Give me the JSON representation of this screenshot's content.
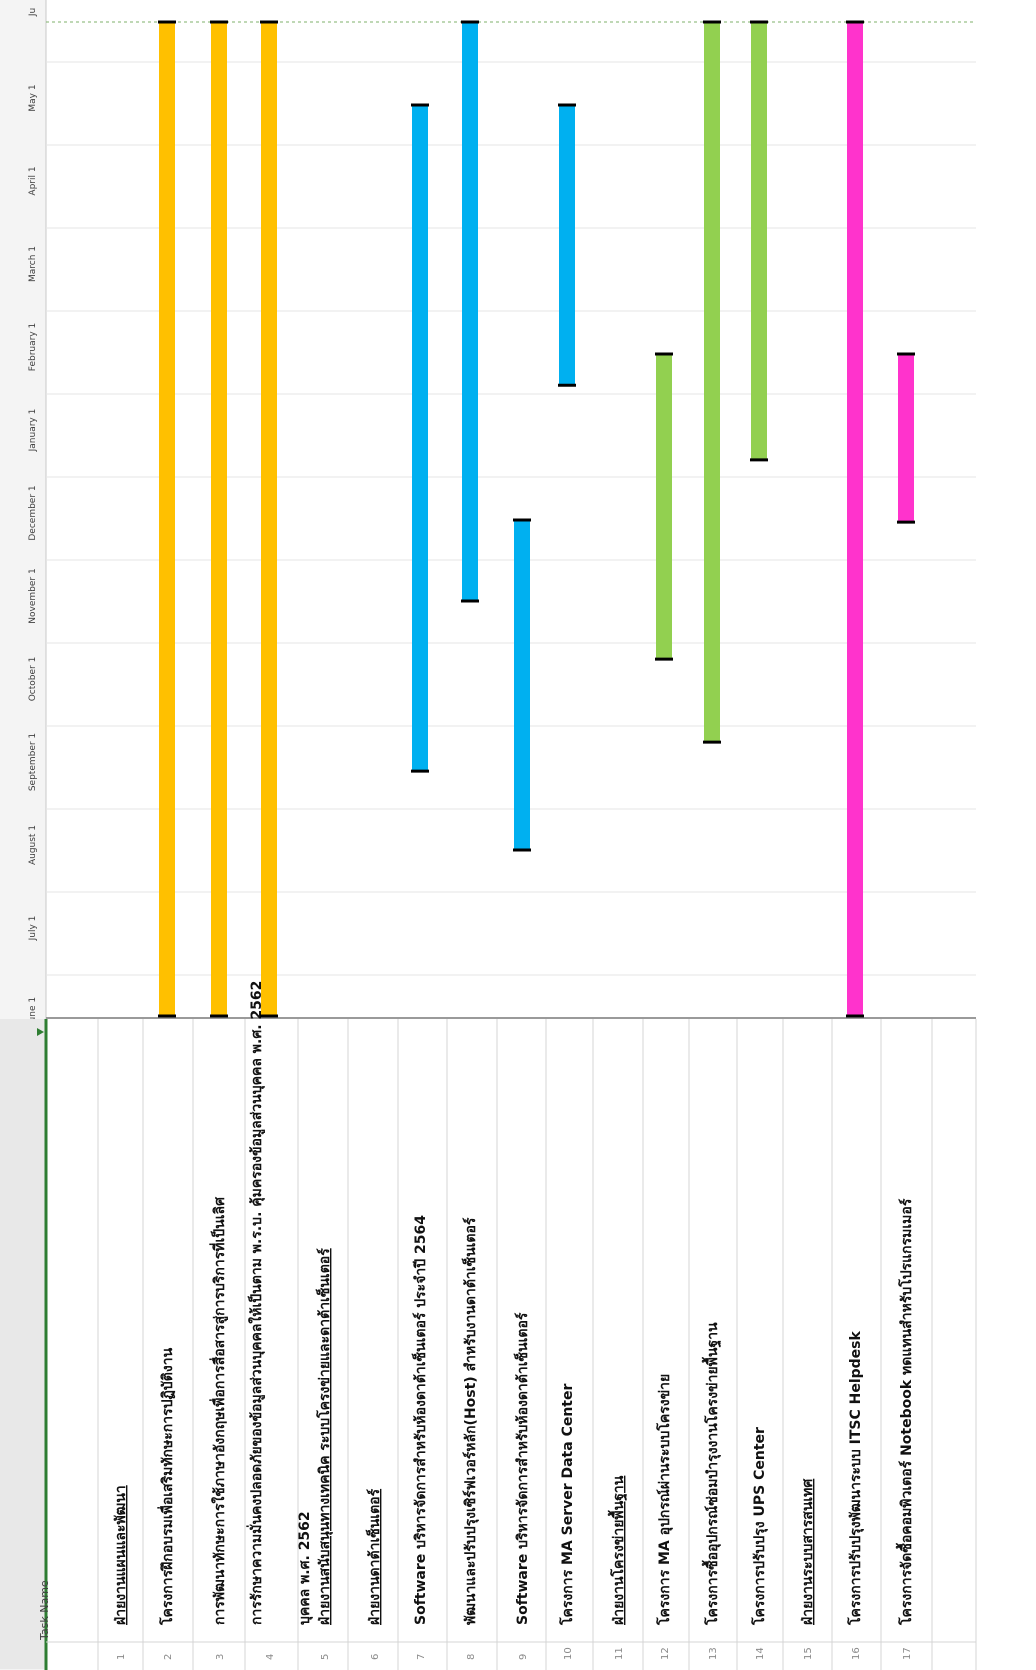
{
  "table": {
    "header_task_name": "Task Name",
    "header_dropdown_icon": "triangle-down-icon"
  },
  "timeline": {
    "months": [
      "June 1",
      "July 1",
      "August 1",
      "September 1",
      "October 1",
      "November 1",
      "December 1",
      "January 1",
      "February 1",
      "March 1",
      "April 1",
      "May 1",
      "Ju"
    ],
    "today_line_color": "#7fb26b"
  },
  "chart_data": {
    "type": "gantt",
    "orientation": "rotated-90-ccw",
    "time_axis": {
      "labels": [
        "June 1",
        "July 1",
        "August 1",
        "September 1",
        "October 1",
        "November 1",
        "December 1",
        "January 1",
        "February 1",
        "March 1",
        "April 1",
        "May 1",
        "Ju"
      ],
      "range": [
        "June 1",
        "June 15 (following year)"
      ]
    },
    "tasks": [
      {
        "row": "1",
        "name": "ฝ่ายงานแผนและพัฒนา",
        "section": true
      },
      {
        "row": "2",
        "name": "โครงการฝึกอบรมเพื่อเสริมทักษะการปฏิบัติงาน",
        "start_month": 0.0,
        "end_month": 12.0,
        "color": "#ffc000"
      },
      {
        "row": "3",
        "name": "การพัฒนาทักษะการใช้ภาษาอังกฤษเพื่อการสื่อสารสู่การบริการที่เป็นเลิศ",
        "start_month": 0.0,
        "end_month": 12.0,
        "color": "#ffc000"
      },
      {
        "row": "4",
        "name": "การรักษาความมั่นคงปลอดภัยของข้อมูลส่วนบุคคลให้เป็นตาม พ.ร.บ. คุ้มครองข้อมูลส่วนบุคคล พ.ศ. 2562",
        "start_month": 0.0,
        "end_month": 12.0,
        "color": "#ffc000"
      },
      {
        "row": "5",
        "name": "ฝ่ายงานสนับสนุนทางเทคนิค ระบบโครงข่ายและดาต้าเซ็นเตอร์",
        "section": true
      },
      {
        "row": "6",
        "name": "ฝ่ายงานดาต้าเซ็นเตอร์",
        "section": true
      },
      {
        "row": "7",
        "name": "Software บริหารจัดการสำหรับห้องดาต้าเซ็นเตอร์ ประจำปี 2564",
        "start_month": 2.95,
        "end_month": 11.0,
        "color": "#00b0f0"
      },
      {
        "row": "8",
        "name": "พัฒนาและปรับปรุงเซิร์ฟเวอร์หลัก(Host) สำหรับงานดาต้าเซ็นเตอร์",
        "start_month": 5.0,
        "end_month": 12.0,
        "color": "#00b0f0"
      },
      {
        "row": "9",
        "name": "Software บริหารจัดการสำหรับห้องดาต้าเซ็นเตอร์",
        "start_month": 2.0,
        "end_month": 6.0,
        "color": "#00b0f0"
      },
      {
        "row": "10",
        "name": "โครงการ MA Server Data Center",
        "start_month": 7.6,
        "end_month": 11.0,
        "color": "#00b0f0"
      },
      {
        "row": "11",
        "name": "ฝ่ายงานโครงข่ายพื้นฐาน",
        "section": true
      },
      {
        "row": "12",
        "name": "โครงการ MA อุปกรณ์ผ่านระบบโครงข่าย",
        "start_month": 4.3,
        "end_month": 8.0,
        "color": "#92d050"
      },
      {
        "row": "13",
        "name": "โครงการซื้ออุปกรณ์ซ่อมบำรุงงานโครงข่ายพื้นฐาน",
        "start_month": 3.3,
        "end_month": 12.0,
        "color": "#92d050"
      },
      {
        "row": "14",
        "name": "โครงการปรับปรุง UPS Center",
        "start_month": 6.7,
        "end_month": 12.0,
        "color": "#92d050"
      },
      {
        "row": "15",
        "name": "ฝ่ายงานระบบสารสนเทศ",
        "section": true
      },
      {
        "row": "16",
        "name": "โครงการปรับปรุงพัฒนาระบบ ITSC Helpdesk",
        "start_month": 0.0,
        "end_month": 12.0,
        "color": "#ff33cc"
      },
      {
        "row": "17",
        "name": "โครงการจัดซื้อคอมพิวเตอร์ Notebook ทดแทนสำหรับโปรแกรมเมอร์",
        "start_month": 5.95,
        "end_month": 8.0,
        "color": "#ff33cc"
      }
    ]
  }
}
